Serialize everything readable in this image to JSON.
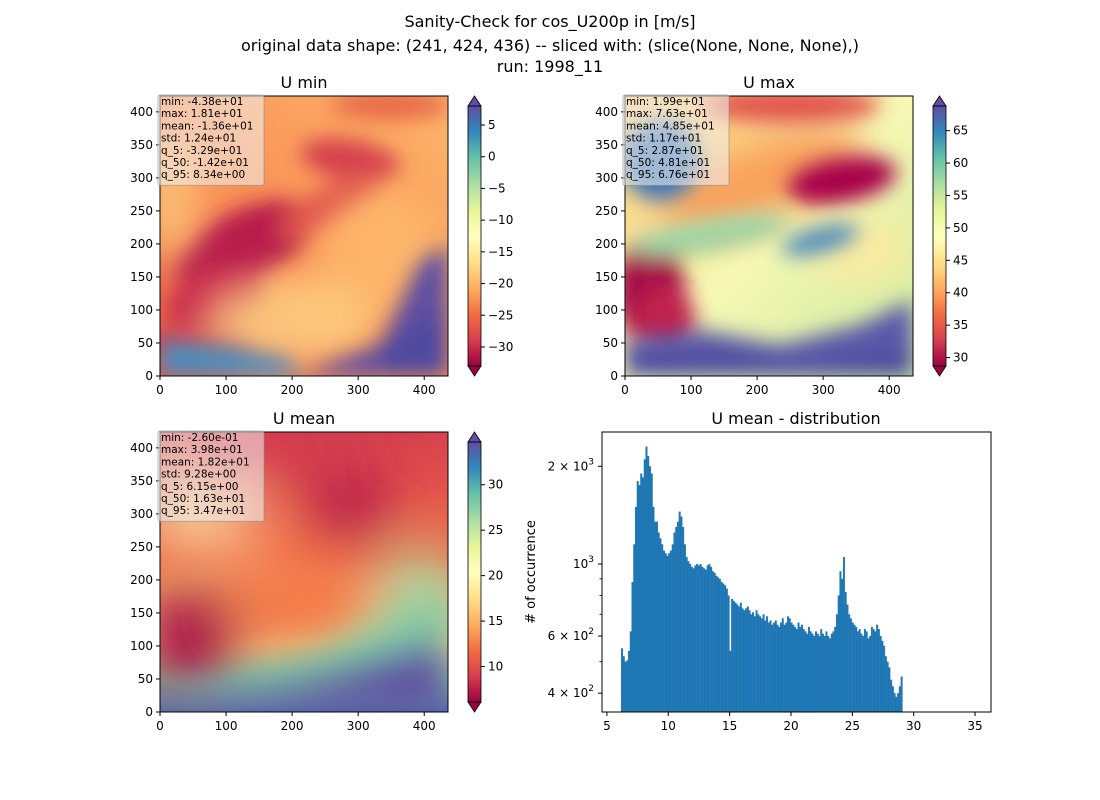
{
  "figure": {
    "title_lines": [
      "Sanity-Check for cos_U200p in [m/s]",
      "original data shape: (241, 424, 436) -- sliced with: (slice(None, None, None),)",
      "run: 1998_11"
    ]
  },
  "colors": {
    "histogram_bar": "#1f77b4",
    "spectral_colormap": [
      "#9e0142",
      "#d53e4f",
      "#f46d43",
      "#fdae61",
      "#fee08b",
      "#ffffbf",
      "#e6f598",
      "#abdda4",
      "#66c2a5",
      "#3288bd",
      "#5e4fa2"
    ],
    "stats_box_bg": "#f2f2f2"
  },
  "chart_data": [
    {
      "type": "heatmap",
      "title": "U min",
      "xlim": [
        0,
        436
      ],
      "ylim": [
        0,
        424
      ],
      "xticks": [
        "0",
        "100",
        "200",
        "300",
        "400"
      ],
      "yticks": [
        "0",
        "50",
        "100",
        "150",
        "200",
        "250",
        "300",
        "350",
        "400"
      ],
      "colorbar": {
        "range": [
          -33,
          8
        ],
        "extend": "both",
        "ticks": [
          "−30",
          "−25",
          "−20",
          "−15",
          "−10",
          "−5",
          "0",
          "5"
        ],
        "tick_values": [
          -30,
          -25,
          -20,
          -15,
          -10,
          -5,
          0,
          5
        ]
      },
      "stats": [
        "min: -4.38e+01",
        "max: 1.81e+01",
        "mean: -1.36e+01",
        "std: 1.24e+01",
        "q_5: -3.29e+01",
        "q_50: -1.42e+01",
        "q_95: 8.34e+00"
      ]
    },
    {
      "type": "heatmap",
      "title": "U max",
      "xlim": [
        0,
        436
      ],
      "ylim": [
        0,
        424
      ],
      "xticks": [
        "0",
        "100",
        "200",
        "300",
        "400"
      ],
      "yticks": [
        "0",
        "50",
        "100",
        "150",
        "200",
        "250",
        "300",
        "350",
        "400"
      ],
      "colorbar": {
        "range": [
          28.7,
          68.8
        ],
        "extend": "both",
        "ticks": [
          "30",
          "35",
          "40",
          "45",
          "50",
          "55",
          "60",
          "65"
        ],
        "tick_values": [
          30,
          35,
          40,
          45,
          50,
          55,
          60,
          65
        ]
      },
      "stats": [
        "min: 1.99e+01",
        "max: 7.63e+01",
        "mean: 4.85e+01",
        "std: 1.17e+01",
        "q_5: 2.87e+01",
        "q_50: 4.81e+01",
        "q_95: 6.76e+01"
      ]
    },
    {
      "type": "heatmap",
      "title": "U mean",
      "xlim": [
        0,
        436
      ],
      "ylim": [
        0,
        424
      ],
      "xticks": [
        "0",
        "100",
        "200",
        "300",
        "400"
      ],
      "yticks": [
        "0",
        "50",
        "100",
        "150",
        "200",
        "250",
        "300",
        "350",
        "400"
      ],
      "colorbar": {
        "range": [
          6.1,
          34.7
        ],
        "extend": "both",
        "ticks": [
          "10",
          "15",
          "20",
          "25",
          "30"
        ],
        "tick_values": [
          10,
          15,
          20,
          25,
          30
        ]
      },
      "stats": [
        "min: -2.60e-01",
        "max: 3.98e+01",
        "mean: 1.82e+01",
        "std: 9.28e+00",
        "q_5: 6.15e+00",
        "q_50: 1.63e+01",
        "q_95: 3.47e+01"
      ]
    },
    {
      "type": "bar",
      "title": "U mean - distribution",
      "ylabel": "# of occurrence",
      "yscale": "log",
      "xlim": [
        4.6,
        36.3
      ],
      "ylim": [
        350,
        2550
      ],
      "xticks": [
        "5",
        "10",
        "15",
        "20",
        "25",
        "30",
        "35"
      ],
      "xtick_values": [
        5,
        10,
        15,
        20,
        25,
        30,
        35
      ],
      "yticks_major": [
        {
          "value": 400,
          "mantissa": "4",
          "exp": "2"
        },
        {
          "value": 600,
          "mantissa": "6",
          "exp": "2"
        },
        {
          "value": 1000,
          "mantissa": "",
          "exp": "3"
        },
        {
          "value": 2000,
          "mantissa": "2",
          "exp": "3"
        }
      ],
      "yticks_minor": [
        300,
        500,
        700,
        800,
        900
      ],
      "series": [
        {
          "bin_start": 6.15,
          "bin_width": 0.1424,
          "values": [
            550,
            520,
            500,
            505,
            540,
            620,
            880,
            1150,
            1500,
            1800,
            1750,
            1900,
            1850,
            2100,
            2300,
            2150,
            2000,
            1900,
            1500,
            1350,
            1350,
            1250,
            1200,
            1150,
            1100,
            1080,
            1060,
            1080,
            1100,
            1150,
            1250,
            1300,
            1350,
            1450,
            1400,
            1300,
            1150,
            1050,
            1020,
            1000,
            980,
            970,
            990,
            1000,
            990,
            1000,
            980,
            970,
            960,
            990,
            1000,
            980,
            950,
            940,
            920,
            910,
            900,
            880,
            870,
            860,
            840,
            800,
            540,
            780,
            770,
            760,
            750,
            740,
            760,
            730,
            720,
            730,
            740,
            720,
            700,
            710,
            690,
            720,
            700,
            690,
            680,
            700,
            670,
            690,
            660,
            670,
            650,
            660,
            670,
            650,
            640,
            660,
            680,
            650,
            660,
            690,
            680,
            660,
            650,
            640,
            630,
            660,
            640,
            650,
            630,
            620,
            610,
            640,
            620,
            610,
            600,
            620,
            610,
            600,
            630,
            610,
            600,
            620,
            600,
            590,
            610,
            620,
            640,
            700,
            800,
            950,
            900,
            1050,
            820,
            750,
            700,
            680,
            660,
            650,
            640,
            620,
            630,
            610,
            600,
            630,
            620,
            590,
            600,
            640,
            630,
            620,
            650,
            630,
            600,
            580,
            560,
            520,
            500,
            480,
            440,
            420,
            400,
            390,
            400,
            420,
            450
          ]
        }
      ]
    }
  ]
}
